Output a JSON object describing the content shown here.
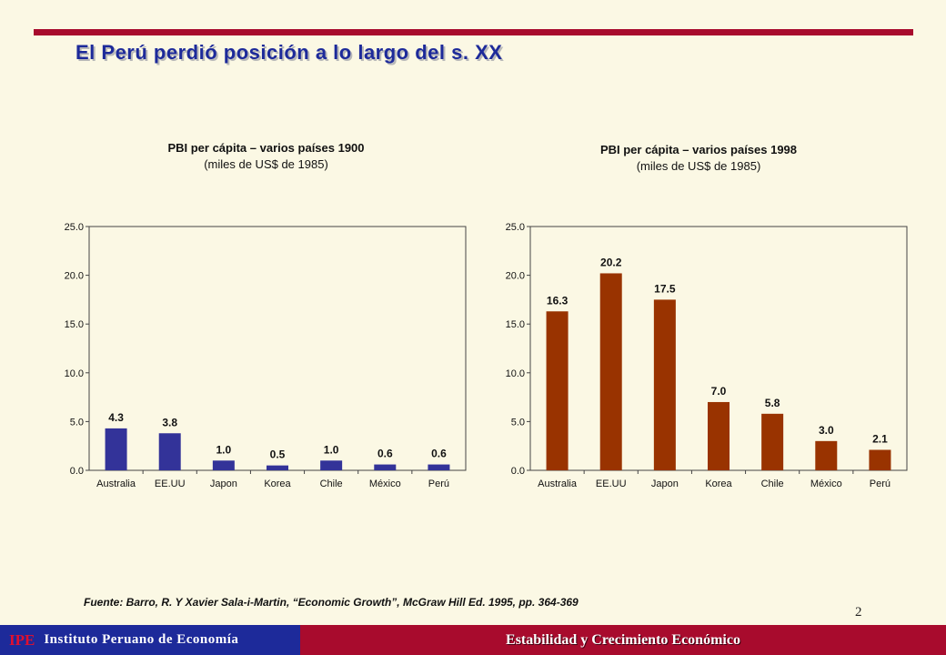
{
  "slide": {
    "title": "El Perú perdió posición a lo largo del s. XX",
    "source": "Fuente: Barro, R. Y Xavier Sala-i-Martin, “Economic Growth”, McGraw Hill Ed. 1995, pp. 364-369",
    "page_number": "2"
  },
  "footer": {
    "abbr": "IPE",
    "org_name": "Instituto Peruano de Economía",
    "tagline": "Estabilidad y Crecimiento Económico"
  },
  "colors": {
    "accent_red": "#a80b2d",
    "navy": "#1d2a9a",
    "bar_1900": "#333399",
    "bar_1998": "#993300",
    "background": "#fbf8e4"
  },
  "chart_data": [
    {
      "type": "bar",
      "title": "PBI per cápita – varios países 1900",
      "subtitle": "(miles de US$ de 1985)",
      "categories": [
        "Australia",
        "EE.UU",
        "Japon",
        "Korea",
        "Chile",
        "México",
        "Perú"
      ],
      "values": [
        4.3,
        3.8,
        1.0,
        0.5,
        1.0,
        0.6,
        0.6
      ],
      "data_labels": [
        "4.3",
        "3.8",
        "1.0",
        "0.5",
        "1.0",
        "0.6",
        "0.6"
      ],
      "ylim": [
        0,
        25
      ],
      "yticks": [
        "0.0",
        "5.0",
        "10.0",
        "15.0",
        "20.0",
        "25.0"
      ],
      "grid": false,
      "color": "#333399"
    },
    {
      "type": "bar",
      "title": "PBI per cápita – varios países 1998",
      "subtitle": "(miles de US$ de 1985)",
      "categories": [
        "Australia",
        "EE.UU",
        "Japon",
        "Korea",
        "Chile",
        "México",
        "Perú"
      ],
      "values": [
        16.3,
        20.2,
        17.5,
        7.0,
        5.8,
        3.0,
        2.1
      ],
      "data_labels": [
        "16.3",
        "20.2",
        "17.5",
        "7.0",
        "5.8",
        "3.0",
        "2.1"
      ],
      "ylim": [
        0,
        25
      ],
      "yticks": [
        "0.0",
        "5.0",
        "10.0",
        "15.0",
        "20.0",
        "25.0"
      ],
      "grid": false,
      "color": "#993300"
    }
  ]
}
